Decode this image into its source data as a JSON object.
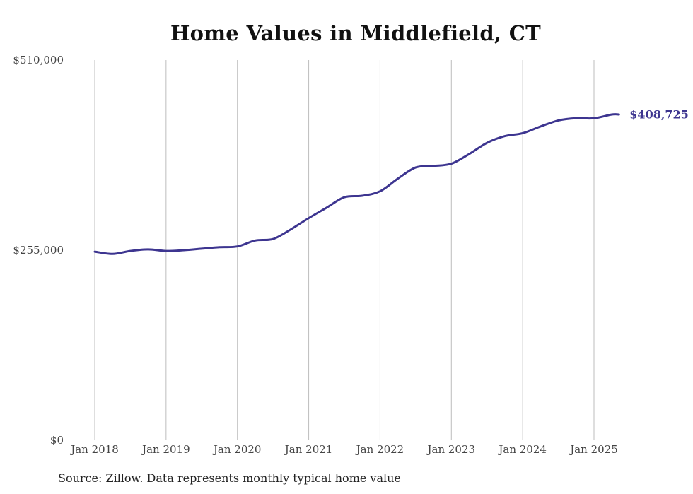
{
  "chart_data": {
    "type": "line",
    "title": "Home Values in Middlefield, CT",
    "xlabel": "",
    "ylabel": "",
    "ylim": [
      0,
      510000
    ],
    "y_ticks": [
      {
        "value": 0,
        "label": "$0"
      },
      {
        "value": 255000,
        "label": "$255,000"
      },
      {
        "value": 510000,
        "label": "$510,000"
      }
    ],
    "x_ticks": [
      {
        "value": 2018,
        "label": "Jan 2018"
      },
      {
        "value": 2019,
        "label": "Jan 2019"
      },
      {
        "value": 2020,
        "label": "Jan 2020"
      },
      {
        "value": 2021,
        "label": "Jan 2021"
      },
      {
        "value": 2022,
        "label": "Jan 2022"
      },
      {
        "value": 2023,
        "label": "Jan 2023"
      },
      {
        "value": 2024,
        "label": "Jan 2024"
      },
      {
        "value": 2025,
        "label": "Jan 2025"
      }
    ],
    "xlim": [
      2018,
      2025.35
    ],
    "grid": "vertical",
    "line_color": "#3d3590",
    "series": [
      {
        "x": [
          2018.0,
          2018.25,
          2018.5,
          2018.75,
          2019.0,
          2019.25,
          2019.5,
          2019.75,
          2020.0,
          2020.25,
          2020.5,
          2020.75,
          2021.0,
          2021.25,
          2021.5,
          2021.75,
          2022.0,
          2022.25,
          2022.5,
          2022.75,
          2023.0,
          2023.25,
          2023.5,
          2023.75,
          2024.0,
          2024.25,
          2024.5,
          2024.75,
          2025.0,
          2025.25,
          2025.35
        ],
        "values": [
          253000,
          250000,
          254000,
          256000,
          254000,
          255000,
          257000,
          259000,
          260000,
          268000,
          270000,
          283000,
          298000,
          312000,
          326000,
          328000,
          334000,
          351000,
          366000,
          368000,
          371000,
          384000,
          399000,
          408000,
          412000,
          421000,
          429000,
          432000,
          432000,
          437000,
          408725
        ]
      }
    ],
    "end_label": "$408,725"
  },
  "source": "Source: Zillow. Data represents monthly typical home value"
}
